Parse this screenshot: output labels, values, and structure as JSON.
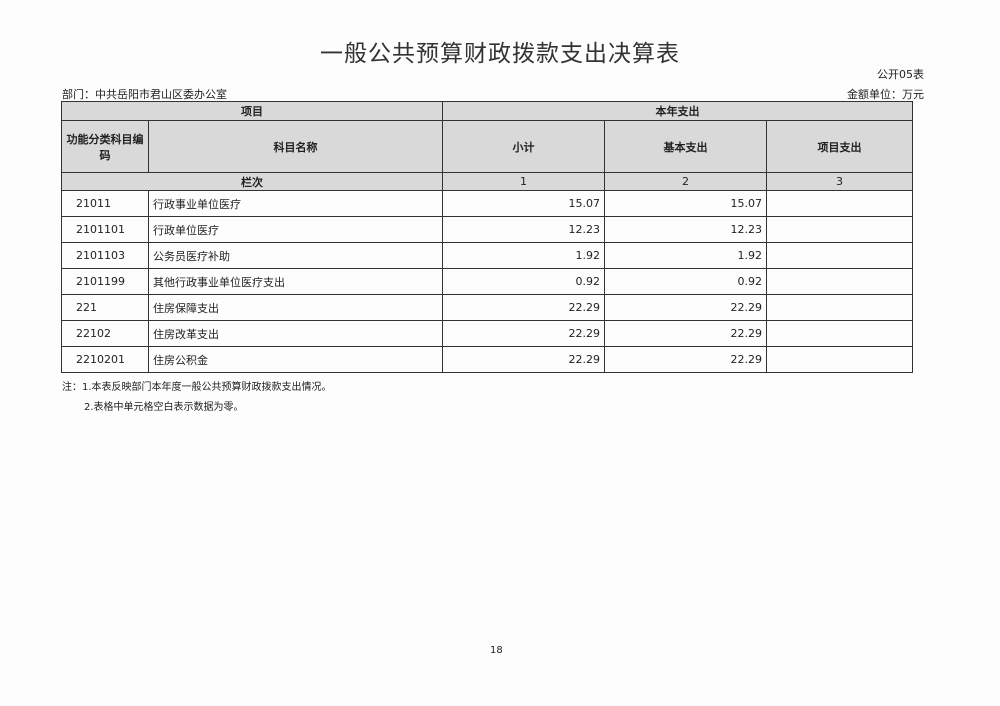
{
  "title": "一般公共预算财政拨款支出决算表",
  "form_code": "公开05表",
  "department": "部门：中共岳阳市君山区委办公室",
  "unit": "金额单位：万元",
  "headers": {
    "item": "项目",
    "current_year": "本年支出",
    "code": "功能分类科目编码",
    "name": "科目名称",
    "subtotal": "小计",
    "basic": "基本支出",
    "project": "项目支出",
    "column_index": "栏次",
    "col1": "1",
    "col2": "2",
    "col3": "3"
  },
  "rows": [
    {
      "code": "21011",
      "name": "行政事业单位医疗",
      "subtotal": "15.07",
      "basic": "15.07",
      "project": ""
    },
    {
      "code": "2101101",
      "name": "行政单位医疗",
      "subtotal": "12.23",
      "basic": "12.23",
      "project": ""
    },
    {
      "code": "2101103",
      "name": "公务员医疗补助",
      "subtotal": "1.92",
      "basic": "1.92",
      "project": ""
    },
    {
      "code": "2101199",
      "name": "其他行政事业单位医疗支出",
      "subtotal": "0.92",
      "basic": "0.92",
      "project": ""
    },
    {
      "code": "221",
      "name": "住房保障支出",
      "subtotal": "22.29",
      "basic": "22.29",
      "project": ""
    },
    {
      "code": "22102",
      "name": "住房改革支出",
      "subtotal": "22.29",
      "basic": "22.29",
      "project": ""
    },
    {
      "code": "2210201",
      "name": "住房公积金",
      "subtotal": "22.29",
      "basic": "22.29",
      "project": ""
    }
  ],
  "notes": [
    "注：1.本表反映部门本年度一般公共预算财政拨款支出情况。",
    "2.表格中单元格空白表示数据为零。"
  ],
  "page_number": "18"
}
